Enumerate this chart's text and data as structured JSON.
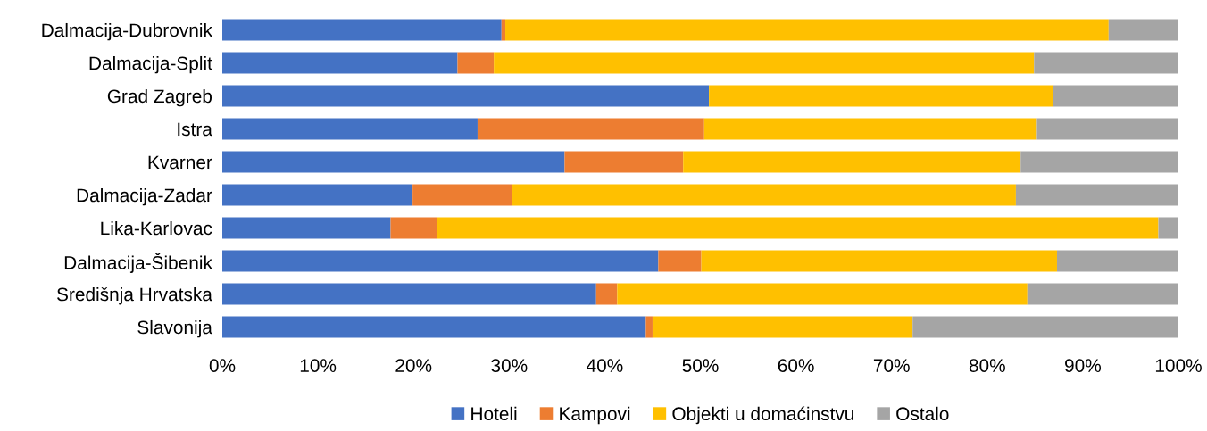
{
  "chart_data": {
    "type": "bar",
    "orientation": "horizontal",
    "stacked": true,
    "categories": [
      "Dalmacija-Dubrovnik",
      "Dalmacija-Split",
      "Grad Zagreb",
      "Istra",
      "Kvarner",
      "Dalmacija-Zadar",
      "Lika-Karlovac",
      "Dalmacija-Šibenik",
      "Središnja Hrvatska",
      "Slavonija"
    ],
    "series": [
      {
        "name": "Hoteli",
        "color": "#4472c4",
        "values": [
          29.2,
          24.6,
          50.9,
          26.7,
          35.8,
          19.9,
          17.6,
          45.6,
          39.1,
          44.3
        ]
      },
      {
        "name": "Kampovi",
        "color": "#ed7d31",
        "values": [
          0.4,
          3.8,
          0,
          23.7,
          12.4,
          10.4,
          4.9,
          4.5,
          2.2,
          0.7
        ]
      },
      {
        "name": "Objekti u domaćinstvu",
        "color": "#ffc000",
        "values": [
          63.1,
          56.5,
          36.0,
          34.8,
          35.3,
          52.7,
          75.4,
          37.2,
          42.9,
          27.2
        ]
      },
      {
        "name": "Ostalo",
        "color": "#a5a5a5",
        "values": [
          7.3,
          15.1,
          13.1,
          14.8,
          16.5,
          17.0,
          2.1,
          12.7,
          15.8,
          27.8
        ]
      }
    ],
    "xlim": [
      0,
      100
    ],
    "xticks": [
      {
        "value": 0,
        "label": "0%"
      },
      {
        "value": 10,
        "label": "10%"
      },
      {
        "value": 20,
        "label": "20%"
      },
      {
        "value": 30,
        "label": "30%"
      },
      {
        "value": 40,
        "label": "40%"
      },
      {
        "value": 50,
        "label": "50%"
      },
      {
        "value": 60,
        "label": "60%"
      },
      {
        "value": 70,
        "label": "70%"
      },
      {
        "value": 80,
        "label": "80%"
      },
      {
        "value": 90,
        "label": "90%"
      },
      {
        "value": 100,
        "label": "100%"
      }
    ],
    "grid": false,
    "legend": "bottom"
  }
}
